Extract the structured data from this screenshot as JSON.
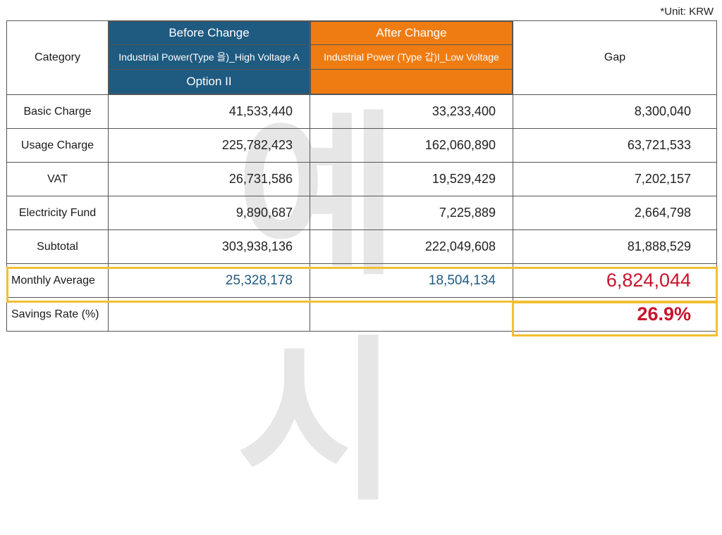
{
  "unit_note": "*Unit: KRW",
  "header": {
    "category": "Category",
    "before_title": "Before Change",
    "before_sub": "Industrial Power(Type 을)_High Voltage A",
    "before_option": "Option II",
    "after_title": "After Change",
    "after_sub": "Industrial Power (Type 갑)I_Low Voltage",
    "gap": "Gap"
  },
  "rows": [
    {
      "label": "Basic Charge",
      "before": "41,533,440",
      "after": "33,233,400",
      "gap": "8,300,040"
    },
    {
      "label": "Usage Charge",
      "before": "225,782,423",
      "after": "162,060,890",
      "gap": "63,721,533"
    },
    {
      "label": "VAT",
      "before": "26,731,586",
      "after": "19,529,429",
      "gap": "7,202,157"
    },
    {
      "label": "Electricity Fund",
      "before": "9,890,687",
      "after": "7,225,889",
      "gap": "2,664,798"
    },
    {
      "label": "Subtotal",
      "before": "303,938,136",
      "after": "222,049,608",
      "gap": "81,888,529"
    },
    {
      "label": "Monthly Average",
      "before": "25,328,178",
      "after": "18,504,134",
      "gap": "6,824,044"
    },
    {
      "label": "Savings Rate (%)",
      "before": "",
      "after": "",
      "gap": "26.9%"
    }
  ],
  "watermark": "예시",
  "colors": {
    "before_header": "#1f5a80",
    "after_header": "#ef7c12",
    "highlight": "#f2bf32",
    "emphasis": "#c8142b"
  }
}
